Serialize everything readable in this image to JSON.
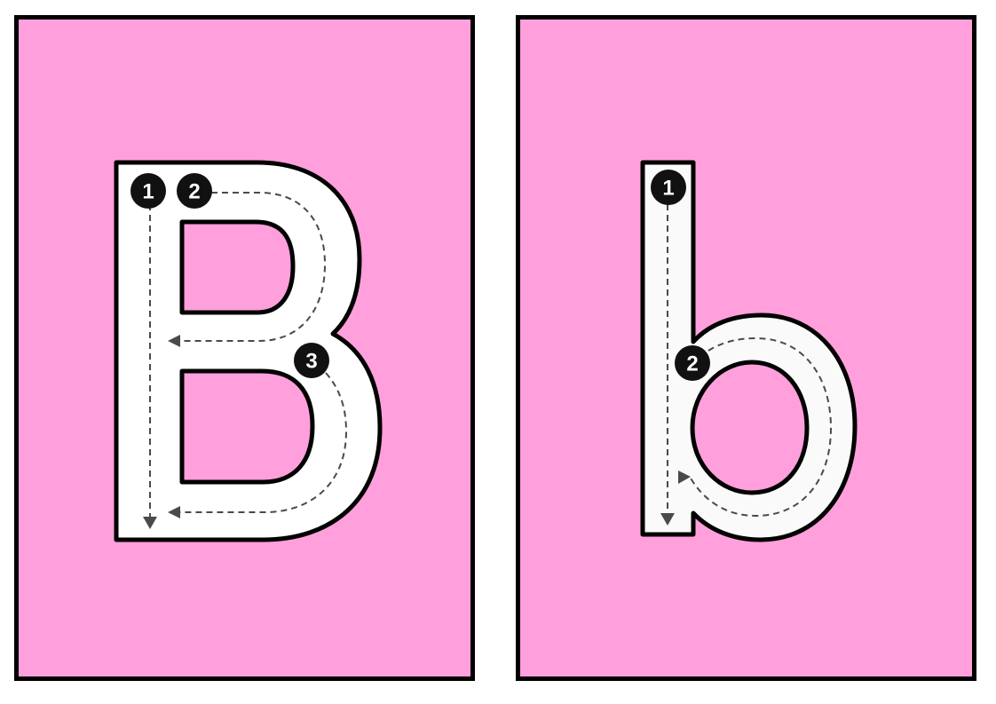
{
  "colors": {
    "card_background": "#ffa0dc",
    "card_border": "#000000",
    "letter_fill": "#ffffff",
    "guide": "#4a4a4a",
    "badge": "#111111"
  },
  "cards": [
    {
      "letter": "B",
      "steps": [
        "1",
        "2",
        "3"
      ]
    },
    {
      "letter": "b",
      "steps": [
        "1",
        "2"
      ]
    }
  ]
}
